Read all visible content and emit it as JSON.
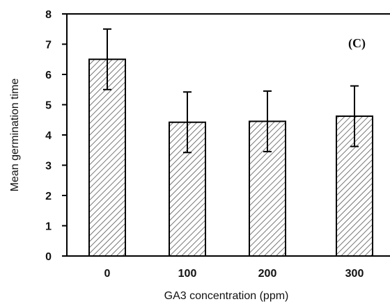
{
  "chart_data": {
    "type": "bar",
    "panel_label": "(C)",
    "xlabel": "GA3 concentration (ppm)",
    "ylabel": "Mean germination time",
    "categories": [
      "0",
      "100",
      "200",
      "300"
    ],
    "values": [
      6.5,
      4.42,
      4.45,
      4.62
    ],
    "error_bars": [
      1.0,
      1.0,
      1.0,
      1.0
    ],
    "ylim": [
      0,
      8
    ],
    "yticks": [
      "0",
      "1",
      "2",
      "3",
      "4",
      "5",
      "6",
      "7",
      "8"
    ],
    "grid": false,
    "legend": "none",
    "bar_fill": "hatched",
    "colors": {
      "axis": "#000000",
      "bar_outline": "#000000",
      "hatch": "#555555",
      "background": "#ffffff"
    }
  }
}
